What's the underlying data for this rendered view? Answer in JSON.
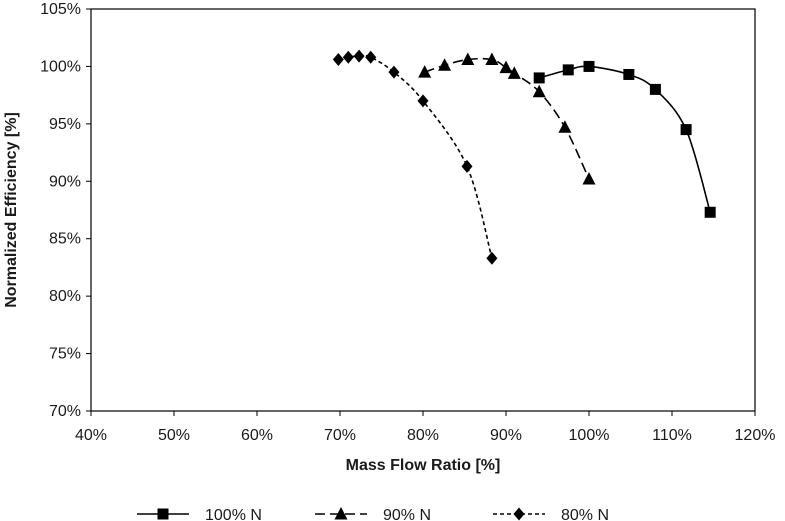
{
  "chart_data": {
    "type": "line",
    "xlabel": "Mass Flow Ratio [%]",
    "ylabel": "Normalized Efficiency [%]",
    "xlim": [
      40,
      120
    ],
    "ylim": [
      70,
      105
    ],
    "xticks": [
      {
        "value": 40,
        "label": "40%"
      },
      {
        "value": 50,
        "label": "50%"
      },
      {
        "value": 60,
        "label": "60%"
      },
      {
        "value": 70,
        "label": "70%"
      },
      {
        "value": 80,
        "label": "80%"
      },
      {
        "value": 90,
        "label": "90%"
      },
      {
        "value": 100,
        "label": "100%"
      },
      {
        "value": 110,
        "label": "110%"
      },
      {
        "value": 120,
        "label": "120%"
      }
    ],
    "yticks": [
      {
        "value": 70,
        "label": "70%"
      },
      {
        "value": 75,
        "label": "75%"
      },
      {
        "value": 80,
        "label": "80%"
      },
      {
        "value": 85,
        "label": "85%"
      },
      {
        "value": 90,
        "label": "90%"
      },
      {
        "value": 95,
        "label": "95%"
      },
      {
        "value": 100,
        "label": "100%"
      },
      {
        "value": 105,
        "label": "105%"
      }
    ],
    "grid": false,
    "legend_position": "bottom",
    "series": [
      {
        "name": "100% N",
        "marker": "square",
        "line": "solid",
        "color": "#000000",
        "x": [
          94.0,
          97.5,
          100.0,
          104.8,
          108.0,
          111.7,
          114.6
        ],
        "y": [
          99.0,
          99.7,
          100.0,
          99.3,
          98.0,
          94.5,
          87.3
        ]
      },
      {
        "name": "90% N",
        "marker": "triangle",
        "line": "long-dash",
        "color": "#000000",
        "x": [
          80.2,
          82.6,
          85.4,
          88.3,
          90.0,
          91.0,
          94.0,
          97.1,
          100.0
        ],
        "y": [
          99.5,
          100.1,
          100.6,
          100.6,
          99.9,
          99.4,
          97.8,
          94.7,
          90.2
        ]
      },
      {
        "name": "80% N",
        "marker": "diamond",
        "line": "short-dash",
        "color": "#000000",
        "x": [
          69.8,
          71.0,
          72.3,
          73.7,
          76.5,
          80.0,
          85.3,
          88.3
        ],
        "y": [
          100.6,
          100.8,
          100.9,
          100.8,
          99.5,
          97.0,
          91.3,
          83.3
        ]
      }
    ]
  }
}
